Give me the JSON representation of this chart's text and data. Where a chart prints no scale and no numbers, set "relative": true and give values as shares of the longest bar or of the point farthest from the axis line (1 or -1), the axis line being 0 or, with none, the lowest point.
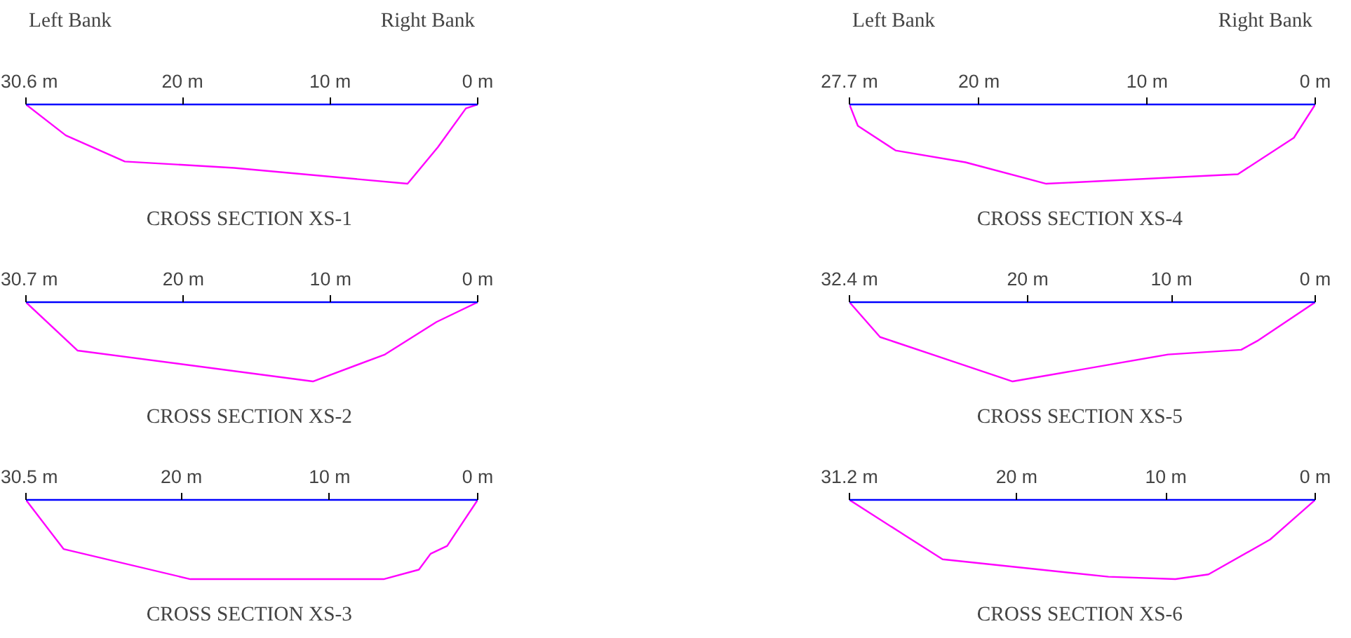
{
  "chart_data": [
    {
      "type": "line",
      "title": "CROSS SECTION  XS-1",
      "annotations": [
        "Left Bank",
        "Right Bank"
      ],
      "relative": true,
      "xlim": [
        30.6,
        0
      ],
      "xticks": [
        {
          "value": 30.6,
          "label": "30.6 m"
        },
        {
          "value": 20,
          "label": "20 m"
        },
        {
          "value": 10,
          "label": "10 m"
        },
        {
          "value": 0,
          "label": "0 m"
        }
      ],
      "series": [
        {
          "color": "#ff00ff",
          "x": [
            30.6,
            27.9,
            23.9,
            16.5,
            4.75,
            2.7,
            0.8,
            0
          ],
          "values": [
            0,
            -0.39,
            -0.72,
            -0.8,
            -1,
            -0.54,
            -0.05,
            0
          ]
        }
      ]
    },
    {
      "type": "line",
      "title": "CROSS SECTION  XS-4",
      "annotations": [
        "Left Bank",
        "Right Bank"
      ],
      "relative": true,
      "xlim": [
        27.7,
        0
      ],
      "xticks": [
        {
          "value": 27.7,
          "label": "27.7 m"
        },
        {
          "value": 20,
          "label": "20 m"
        },
        {
          "value": 10,
          "label": "10 m"
        },
        {
          "value": 0,
          "label": "0 m"
        }
      ],
      "series": [
        {
          "color": "#ff00ff",
          "x": [
            27.7,
            27.2,
            24.96,
            20.8,
            16.0,
            4.6,
            1.27,
            0
          ],
          "values": [
            0,
            -0.27,
            -0.58,
            -0.73,
            -1,
            -0.88,
            -0.42,
            0
          ]
        }
      ]
    },
    {
      "type": "line",
      "title": "CROSS SECTION  XS-2",
      "relative": true,
      "xlim": [
        30.7,
        0
      ],
      "xticks": [
        {
          "value": 30.7,
          "label": "30.7 m"
        },
        {
          "value": 20,
          "label": "20 m"
        },
        {
          "value": 10,
          "label": "10 m"
        },
        {
          "value": 0,
          "label": "0 m"
        }
      ],
      "series": [
        {
          "color": "#ff00ff",
          "x": [
            30.7,
            27.2,
            11.2,
            6.3,
            2.8,
            0
          ],
          "values": [
            0,
            -0.61,
            -1,
            -0.66,
            -0.25,
            0
          ]
        }
      ]
    },
    {
      "type": "line",
      "title": "CROSS SECTION  XS-5",
      "relative": true,
      "xlim": [
        32.4,
        0
      ],
      "xticks": [
        {
          "value": 32.4,
          "label": "32.4 m"
        },
        {
          "value": 20,
          "label": "20 m"
        },
        {
          "value": 10,
          "label": "10 m"
        },
        {
          "value": 0,
          "label": "0 m"
        }
      ],
      "series": [
        {
          "color": "#ff00ff",
          "x": [
            32.4,
            30.27,
            21.05,
            10.24,
            5.15,
            4.04,
            0
          ],
          "values": [
            0,
            -0.44,
            -1,
            -0.66,
            -0.6,
            -0.49,
            0
          ]
        }
      ]
    },
    {
      "type": "line",
      "title": "CROSS SECTION  XS-3",
      "relative": true,
      "xlim": [
        30.5,
        0
      ],
      "xticks": [
        {
          "value": 30.5,
          "label": "30.5 m"
        },
        {
          "value": 20,
          "label": "20 m"
        },
        {
          "value": 10,
          "label": "10 m"
        },
        {
          "value": 0,
          "label": "0 m"
        }
      ],
      "series": [
        {
          "color": "#ff00ff",
          "x": [
            30.5,
            27.96,
            19.4,
            6.35,
            3.97,
            3.18,
            2.06,
            0
          ],
          "values": [
            0,
            -0.62,
            -1,
            -1,
            -0.88,
            -0.68,
            -0.58,
            0
          ]
        }
      ]
    },
    {
      "type": "line",
      "title": "CROSS SECTION  XS-6",
      "relative": true,
      "xlim": [
        31.2,
        0
      ],
      "xticks": [
        {
          "value": 31.2,
          "label": "31.2 m"
        },
        {
          "value": 20,
          "label": "20 m"
        },
        {
          "value": 10,
          "label": "10 m"
        },
        {
          "value": 0,
          "label": "0 m"
        }
      ],
      "series": [
        {
          "color": "#ff00ff",
          "x": [
            31.2,
            27.8,
            24.96,
            13.85,
            9.37,
            7.15,
            3.02,
            0
          ],
          "values": [
            0,
            -0.41,
            -0.75,
            -0.97,
            -1,
            -0.94,
            -0.5,
            0
          ]
        }
      ]
    }
  ]
}
